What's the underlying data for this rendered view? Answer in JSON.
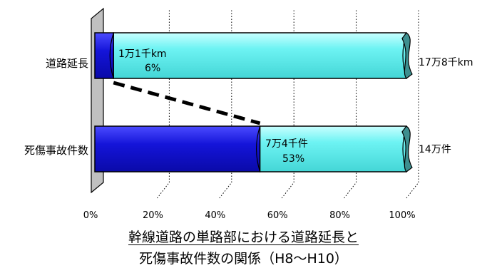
{
  "chart_data": {
    "type": "bar",
    "orientation": "horizontal",
    "stacked": true,
    "percent_scale": true,
    "categories": [
      "道路延長",
      "死傷事故件数"
    ],
    "series": [
      {
        "role": "trunk-road-single-section",
        "color": "#1a1adb",
        "values": [
          6,
          53
        ],
        "labels": [
          [
            "1万1千km",
            "6%"
          ],
          [
            "7万4千件",
            "53%"
          ]
        ]
      },
      {
        "role": "remainder",
        "color": "#6df0f0",
        "values": [
          94,
          47
        ]
      }
    ],
    "totals": [
      "17万8千km",
      "14万件"
    ],
    "x_ticks": [
      "0%",
      "20%",
      "40%",
      "60%",
      "80%",
      "100%"
    ],
    "xlim": [
      0,
      100
    ],
    "grid": "vertical-dotted",
    "connector": "dashed line from end of 6% segment to end of 53% segment",
    "title_lines": [
      "幹線道路の単路部における道路延長と",
      "死傷事故件数の関係（H8～H10）"
    ]
  }
}
